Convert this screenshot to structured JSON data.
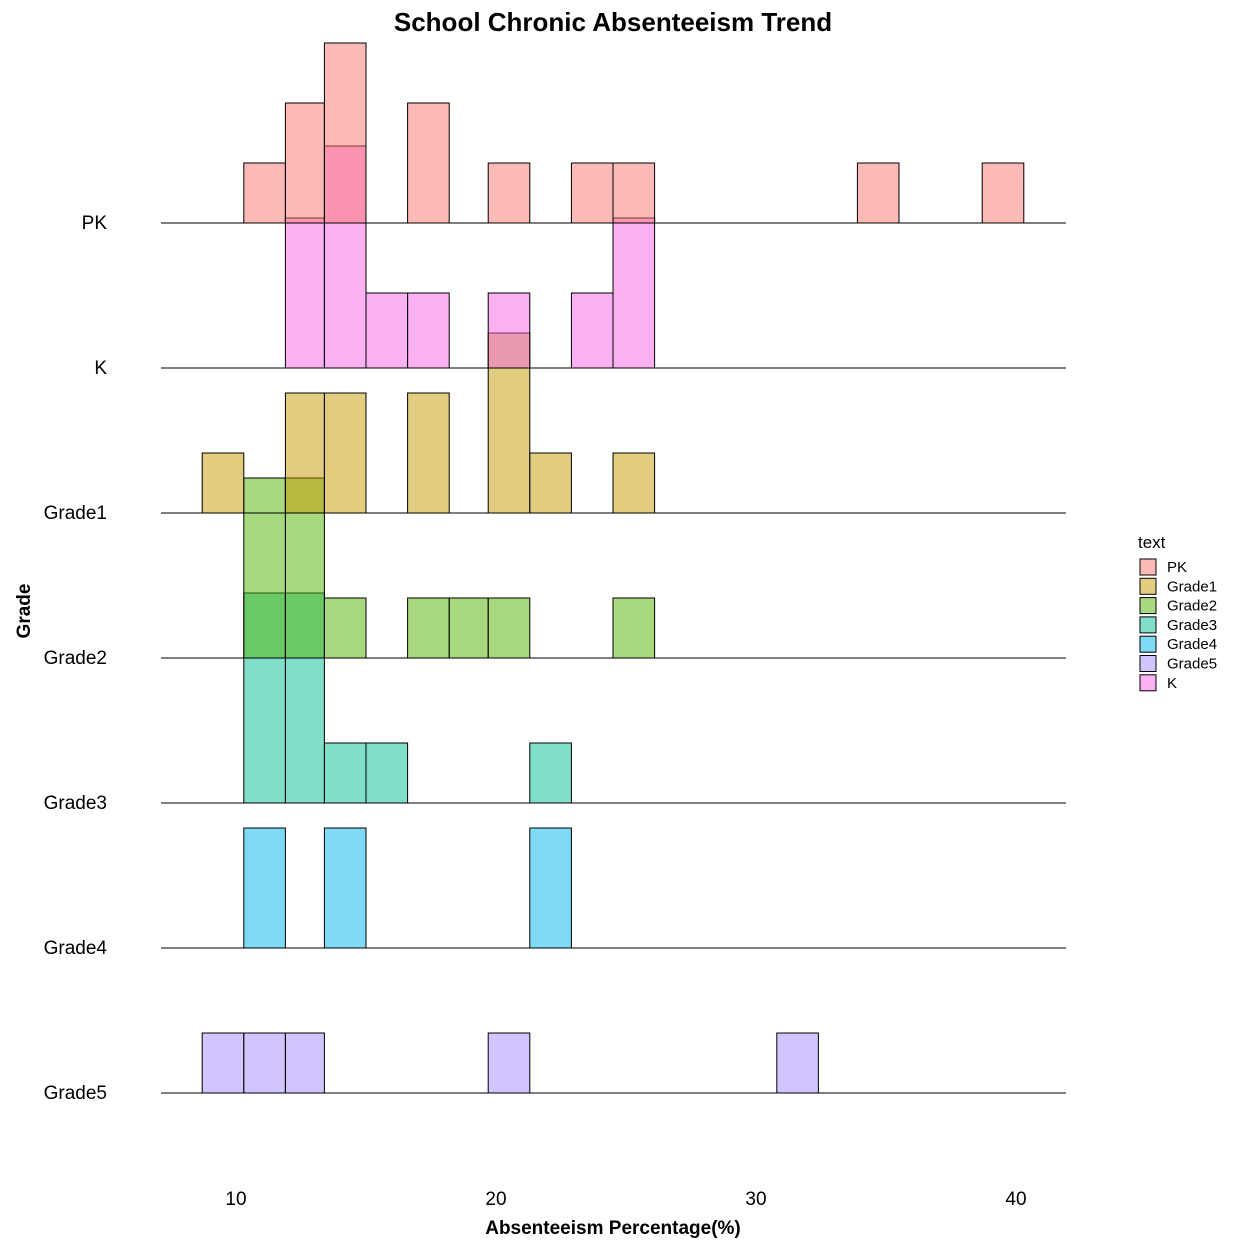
{
  "chart_data": {
    "type": "ridgeline-histogram",
    "title": "School Chronic Absenteeism Trend",
    "xlabel": "Absenteeism Percentage(%)",
    "ylabel": "Grade",
    "xlim": [
      7,
      42
    ],
    "xticks": [
      10,
      20,
      30,
      40
    ],
    "bin_width": 1.58,
    "categories": [
      "PK",
      "K",
      "Grade1",
      "Grade2",
      "Grade3",
      "Grade4",
      "Grade5"
    ],
    "legend": {
      "title": "text",
      "position": "right",
      "entries": [
        "PK",
        "Grade1",
        "Grade2",
        "Grade3",
        "Grade4",
        "Grade5",
        "K"
      ]
    },
    "series": [
      {
        "name": "PK",
        "color": "#F8766D",
        "bins": [
          {
            "x0": 10.3,
            "x1": 11.9,
            "count": 1
          },
          {
            "x0": 11.9,
            "x1": 13.4,
            "count": 2
          },
          {
            "x0": 13.4,
            "x1": 15.0,
            "count": 3
          },
          {
            "x0": 16.6,
            "x1": 18.2,
            "count": 2
          },
          {
            "x0": 19.7,
            "x1": 21.3,
            "count": 1
          },
          {
            "x0": 22.9,
            "x1": 24.5,
            "count": 1
          },
          {
            "x0": 24.5,
            "x1": 26.1,
            "count": 1
          },
          {
            "x0": 33.9,
            "x1": 35.5,
            "count": 1
          },
          {
            "x0": 38.7,
            "x1": 40.3,
            "count": 1
          }
        ]
      },
      {
        "name": "K",
        "color": "#F564E3",
        "bins": [
          {
            "x0": 11.9,
            "x1": 13.4,
            "count": 2.5
          },
          {
            "x0": 13.4,
            "x1": 15.0,
            "count": 3.7
          },
          {
            "x0": 15.0,
            "x1": 16.6,
            "count": 1.25
          },
          {
            "x0": 16.6,
            "x1": 18.2,
            "count": 1.25
          },
          {
            "x0": 19.7,
            "x1": 21.3,
            "count": 1.25
          },
          {
            "x0": 22.9,
            "x1": 24.5,
            "count": 1.25
          },
          {
            "x0": 24.5,
            "x1": 26.1,
            "count": 2.5
          }
        ]
      },
      {
        "name": "Grade1",
        "color": "#B79F00",
        "bins": [
          {
            "x0": 8.7,
            "x1": 10.3,
            "count": 1
          },
          {
            "x0": 11.9,
            "x1": 13.4,
            "count": 2
          },
          {
            "x0": 13.4,
            "x1": 15.0,
            "count": 2
          },
          {
            "x0": 16.6,
            "x1": 18.2,
            "count": 2
          },
          {
            "x0": 19.7,
            "x1": 21.3,
            "count": 3
          },
          {
            "x0": 21.3,
            "x1": 22.9,
            "count": 1
          },
          {
            "x0": 24.5,
            "x1": 26.1,
            "count": 1
          }
        ]
      },
      {
        "name": "Grade2",
        "color": "#00BA38",
        "bins": [
          {
            "x0": 10.3,
            "x1": 11.9,
            "count": 3
          },
          {
            "x0": 11.9,
            "x1": 13.4,
            "count": 3
          },
          {
            "x0": 13.4,
            "x1": 15.0,
            "count": 1
          },
          {
            "x0": 16.6,
            "x1": 18.2,
            "count": 1
          },
          {
            "x0": 18.2,
            "x1": 19.7,
            "count": 1
          },
          {
            "x0": 19.7,
            "x1": 21.3,
            "count": 1
          },
          {
            "x0": 24.5,
            "x1": 26.1,
            "count": 1
          }
        ]
      },
      {
        "name": "Grade3",
        "color": "#00BFC4",
        "bins": [
          {
            "x0": 10.3,
            "x1": 11.9,
            "count": 3.5
          },
          {
            "x0": 11.9,
            "x1": 13.4,
            "count": 3.5
          },
          {
            "x0": 13.4,
            "x1": 15.0,
            "count": 1
          },
          {
            "x0": 15.0,
            "x1": 16.6,
            "count": 1
          },
          {
            "x0": 21.3,
            "x1": 22.9,
            "count": 1
          }
        ]
      },
      {
        "name": "Grade4",
        "color": "#619CFF",
        "bins": [
          {
            "x0": 10.3,
            "x1": 11.9,
            "count": 2
          },
          {
            "x0": 13.4,
            "x1": 15.0,
            "count": 2
          },
          {
            "x0": 21.3,
            "x1": 22.9,
            "count": 2
          }
        ]
      },
      {
        "name": "Grade5",
        "color": "#9F8CFF",
        "bins": [
          {
            "x0": 8.7,
            "x1": 10.3,
            "count": 1
          },
          {
            "x0": 10.3,
            "x1": 11.9,
            "count": 1
          },
          {
            "x0": 11.9,
            "x1": 13.4,
            "count": 1
          },
          {
            "x0": 19.7,
            "x1": 21.3,
            "count": 1
          },
          {
            "x0": 30.8,
            "x1": 32.4,
            "count": 1
          }
        ]
      }
    ],
    "colors": {
      "PK": "#F8766D",
      "K": "#F564E3",
      "Grade1": "#C49A00",
      "Grade2": "#53B400",
      "Grade3": "#00C094",
      "Grade4": "#00B6EB",
      "Grade5": "#A58AFF"
    }
  }
}
